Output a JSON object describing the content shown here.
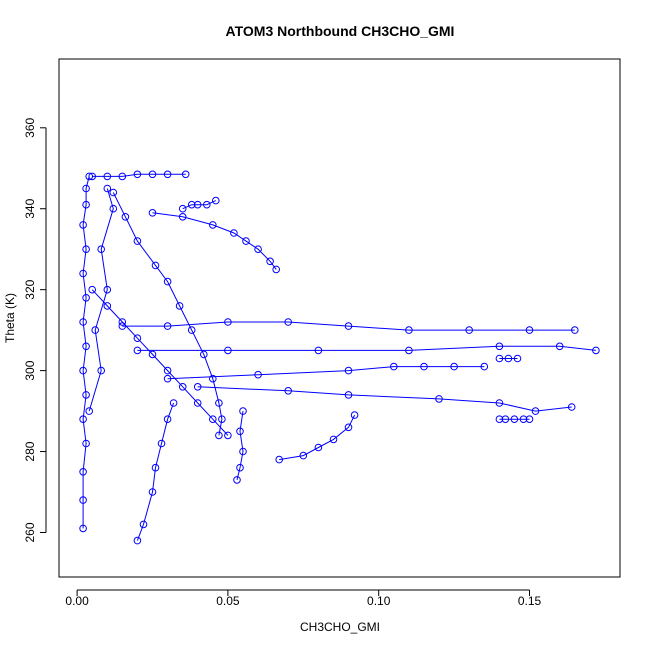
{
  "chart_data": {
    "type": "scatter",
    "title": "ATOM3 Northbound CH3CHO_GMI",
    "xlabel": "CH3CHO_GMI",
    "ylabel": "Theta (K)",
    "xlim": [
      -0.006,
      0.18
    ],
    "ylim": [
      249,
      377
    ],
    "x_ticks": [
      0.0,
      0.05,
      0.1,
      0.15
    ],
    "x_tick_labels": [
      "0.00",
      "0.05",
      "0.10",
      "0.15"
    ],
    "y_ticks": [
      260,
      280,
      300,
      320,
      340,
      360
    ],
    "y_tick_labels": [
      "260",
      "280",
      "300",
      "320",
      "340",
      "360"
    ],
    "grid": false,
    "marker": "open-circle",
    "connecting_lines": true,
    "color": "#0000ff",
    "series": [
      {
        "points": [
          [
            0.002,
            261
          ],
          [
            0.002,
            268
          ],
          [
            0.002,
            275
          ],
          [
            0.003,
            282
          ],
          [
            0.002,
            288
          ],
          [
            0.003,
            294
          ],
          [
            0.002,
            300
          ],
          [
            0.003,
            306
          ],
          [
            0.002,
            312
          ],
          [
            0.003,
            318
          ],
          [
            0.002,
            324
          ],
          [
            0.003,
            330
          ],
          [
            0.002,
            336
          ],
          [
            0.003,
            341
          ],
          [
            0.003,
            345
          ],
          [
            0.004,
            348
          ]
        ]
      },
      {
        "points": [
          [
            0.005,
            348
          ],
          [
            0.01,
            348
          ],
          [
            0.015,
            348
          ],
          [
            0.02,
            348.5
          ],
          [
            0.025,
            348.5
          ],
          [
            0.03,
            348.5
          ],
          [
            0.036,
            348.5
          ]
        ]
      },
      {
        "points": [
          [
            0.012,
            344
          ],
          [
            0.016,
            338
          ],
          [
            0.02,
            332
          ],
          [
            0.026,
            326
          ],
          [
            0.03,
            322
          ],
          [
            0.034,
            316
          ],
          [
            0.038,
            310
          ],
          [
            0.042,
            304
          ],
          [
            0.045,
            298
          ],
          [
            0.047,
            292
          ],
          [
            0.048,
            288
          ],
          [
            0.047,
            284
          ]
        ]
      },
      {
        "points": [
          [
            0.035,
            340
          ],
          [
            0.038,
            341
          ],
          [
            0.04,
            341
          ],
          [
            0.043,
            341
          ],
          [
            0.046,
            342
          ]
        ]
      },
      {
        "points": [
          [
            0.025,
            339
          ],
          [
            0.035,
            338
          ],
          [
            0.045,
            336
          ],
          [
            0.052,
            334
          ],
          [
            0.056,
            332
          ],
          [
            0.06,
            330
          ],
          [
            0.064,
            327
          ],
          [
            0.066,
            325
          ]
        ]
      },
      {
        "points": [
          [
            0.015,
            311
          ],
          [
            0.03,
            311
          ],
          [
            0.05,
            312
          ],
          [
            0.07,
            312
          ],
          [
            0.09,
            311
          ],
          [
            0.11,
            310
          ],
          [
            0.13,
            310
          ],
          [
            0.15,
            310
          ],
          [
            0.165,
            310
          ]
        ]
      },
      {
        "points": [
          [
            0.02,
            305
          ],
          [
            0.05,
            305
          ],
          [
            0.08,
            305
          ],
          [
            0.11,
            305
          ],
          [
            0.14,
            306
          ],
          [
            0.16,
            306
          ],
          [
            0.172,
            305
          ]
        ]
      },
      {
        "points": [
          [
            0.03,
            298
          ],
          [
            0.06,
            299
          ],
          [
            0.09,
            300
          ],
          [
            0.105,
            301
          ],
          [
            0.115,
            301
          ],
          [
            0.125,
            301
          ],
          [
            0.135,
            301
          ]
        ]
      },
      {
        "points": [
          [
            0.04,
            296
          ],
          [
            0.07,
            295
          ],
          [
            0.09,
            294
          ],
          [
            0.12,
            293
          ],
          [
            0.14,
            292
          ],
          [
            0.152,
            290
          ],
          [
            0.164,
            291
          ]
        ]
      },
      {
        "points": [
          [
            0.14,
            288
          ],
          [
            0.142,
            288
          ],
          [
            0.145,
            288
          ],
          [
            0.148,
            288
          ],
          [
            0.15,
            288
          ]
        ]
      },
      {
        "points": [
          [
            0.14,
            303
          ],
          [
            0.143,
            303
          ],
          [
            0.146,
            303
          ]
        ]
      },
      {
        "points": [
          [
            0.02,
            258
          ],
          [
            0.022,
            262
          ],
          [
            0.025,
            270
          ],
          [
            0.026,
            276
          ],
          [
            0.028,
            282
          ],
          [
            0.03,
            288
          ],
          [
            0.032,
            292
          ]
        ]
      },
      {
        "points": [
          [
            0.005,
            320
          ],
          [
            0.01,
            316
          ],
          [
            0.015,
            312
          ],
          [
            0.02,
            308
          ],
          [
            0.025,
            304
          ],
          [
            0.03,
            300
          ],
          [
            0.035,
            296
          ],
          [
            0.04,
            292
          ],
          [
            0.045,
            288
          ],
          [
            0.05,
            284
          ]
        ]
      },
      {
        "points": [
          [
            0.067,
            278
          ],
          [
            0.075,
            279
          ],
          [
            0.08,
            281
          ],
          [
            0.085,
            283
          ],
          [
            0.09,
            286
          ],
          [
            0.092,
            289
          ]
        ]
      },
      {
        "points": [
          [
            0.053,
            273
          ],
          [
            0.054,
            276
          ],
          [
            0.055,
            280
          ],
          [
            0.054,
            285
          ],
          [
            0.055,
            290
          ]
        ]
      },
      {
        "points": [
          [
            0.004,
            290
          ],
          [
            0.008,
            300
          ],
          [
            0.006,
            310
          ],
          [
            0.01,
            320
          ],
          [
            0.008,
            330
          ],
          [
            0.012,
            340
          ],
          [
            0.01,
            345
          ]
        ]
      }
    ]
  }
}
